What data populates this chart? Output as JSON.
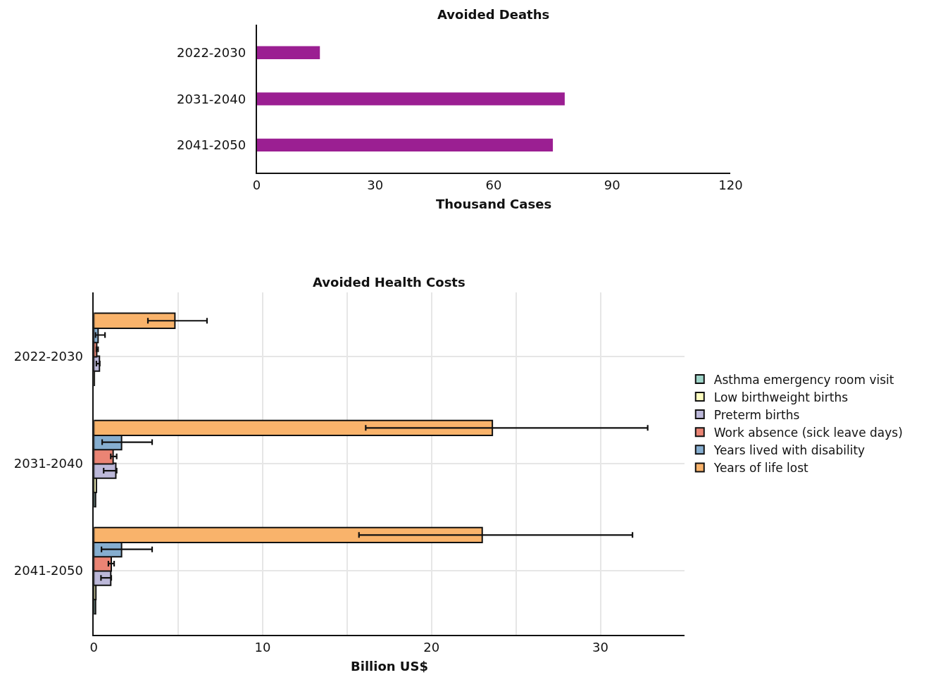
{
  "chart_data": [
    {
      "type": "bar",
      "orientation": "horizontal",
      "title": "Avoided Deaths",
      "xlabel": "Thousand Cases",
      "categories": [
        "2022-2030",
        "2031-2040",
        "2041-2050"
      ],
      "series": [
        {
          "color": "#9b1f92",
          "values": [
            16,
            78,
            75
          ]
        }
      ],
      "xlim": [
        0,
        120
      ],
      "xticks": [
        0,
        30,
        60,
        90,
        120
      ],
      "grid": false,
      "legend": false
    },
    {
      "type": "bar",
      "orientation": "horizontal",
      "title": "Avoided Health Costs",
      "xlabel": "Billion US$",
      "categories": [
        "2022-2030",
        "2031-2040",
        "2041-2050"
      ],
      "series": [
        {
          "name": "Asthma emergency room visit",
          "color": "#9fd5c9",
          "values": [
            null,
            0.1,
            0.1
          ]
        },
        {
          "name": "Low birthweight births",
          "color": "#ffffc0",
          "values": [
            0.03,
            0.15,
            0.12
          ]
        },
        {
          "name": "Preterm births",
          "color": "#bcb8d9",
          "values": [
            0.33,
            1.3,
            1.0
          ],
          "errors": [
            [
              0.15,
              0.35
            ],
            [
              0.58,
              1.35
            ],
            [
              0.42,
              1.03
            ]
          ]
        },
        {
          "name": "Work absence (sick leave days)",
          "color": "#ea8474",
          "values": [
            0.17,
            1.14,
            1.03
          ],
          "errors": [
            [
              0.15,
              0.25
            ],
            [
              1.0,
              1.35
            ],
            [
              0.86,
              1.2
            ]
          ]
        },
        {
          "name": "Years lived with disability",
          "color": "#86aed0",
          "values": [
            0.25,
            1.64,
            1.64
          ],
          "errors": [
            [
              0.1,
              0.66
            ],
            [
              0.49,
              3.45
            ],
            [
              0.45,
              3.45
            ]
          ]
        },
        {
          "name": "Years of life lost",
          "color": "#f9b36b",
          "values": [
            4.8,
            23.6,
            23.0
          ],
          "errors": [
            [
              3.2,
              6.7
            ],
            [
              16.1,
              32.8
            ],
            [
              15.7,
              31.9
            ]
          ]
        }
      ],
      "xlim": [
        0,
        35
      ],
      "xticks": [
        0,
        {
          "value": 5,
          "label": null
        },
        10,
        {
          "value": 15,
          "label": null
        },
        20,
        {
          "value": 25,
          "label": null
        },
        30
      ],
      "grid": true,
      "legend": "right"
    }
  ]
}
